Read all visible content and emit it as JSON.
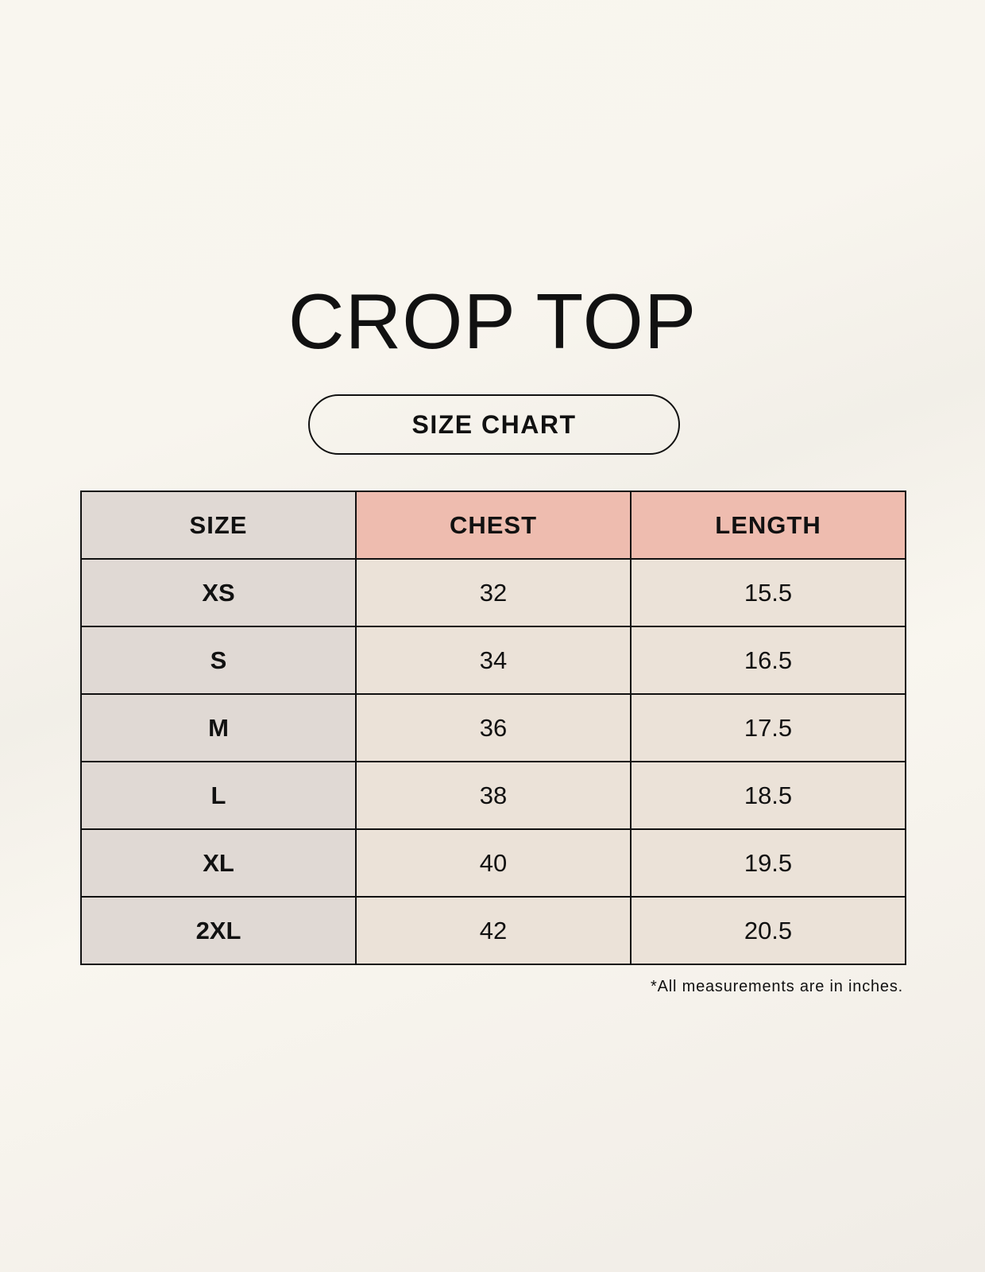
{
  "title": "CROP TOP",
  "subtitle": "SIZE CHART",
  "colors": {
    "size_column": "#e0d9d4",
    "header_accent": "#eebcaf",
    "cell": "#ebe2d8"
  },
  "table": {
    "headers": [
      "SIZE",
      "CHEST",
      "LENGTH"
    ],
    "rows": [
      [
        "XS",
        "32",
        "15.5"
      ],
      [
        "S",
        "34",
        "16.5"
      ],
      [
        "M",
        "36",
        "17.5"
      ],
      [
        "L",
        "38",
        "18.5"
      ],
      [
        "XL",
        "40",
        "19.5"
      ],
      [
        "2XL",
        "42",
        "20.5"
      ]
    ]
  },
  "footnote": "*All measurements are in inches."
}
